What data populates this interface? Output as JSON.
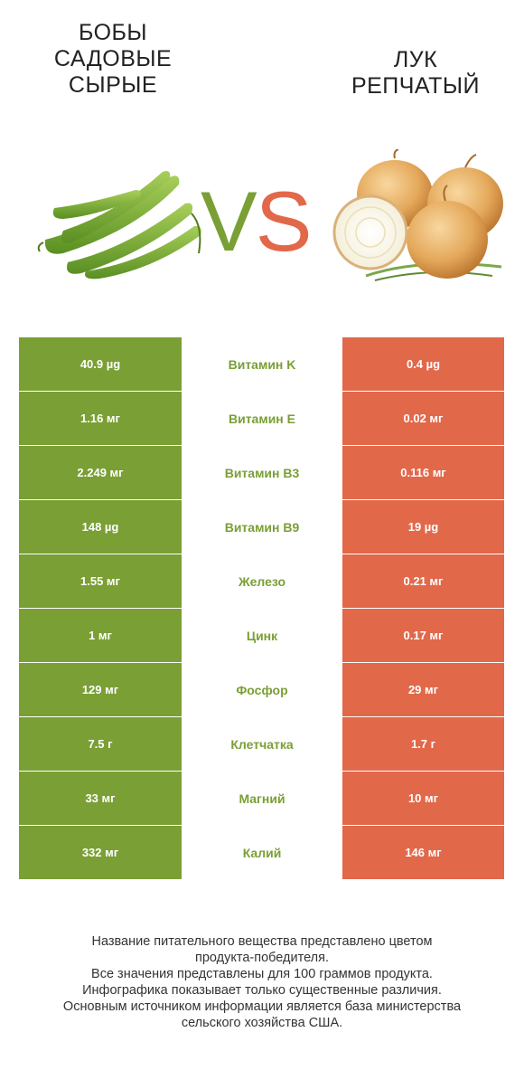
{
  "left_product": {
    "title_lines": [
      "БОБЫ",
      "САДОВЫЕ",
      "СЫРЫЕ"
    ],
    "color": "#7a9f35",
    "image": "broad-beans-illustration"
  },
  "right_product": {
    "title_lines": [
      "ЛУК",
      "РЕПЧАТЫЙ"
    ],
    "color": "#e2684a",
    "image": "onions-illustration"
  },
  "vs": {
    "v": "V",
    "s": "S"
  },
  "rows": [
    {
      "left": "40.9 µg",
      "name": "Витамин K",
      "right": "0.4 µg"
    },
    {
      "left": "1.16 мг",
      "name": "Витамин E",
      "right": "0.02 мг"
    },
    {
      "left": "2.249 мг",
      "name": "Витамин B3",
      "right": "0.116 мг"
    },
    {
      "left": "148 µg",
      "name": "Витамин B9",
      "right": "19 µg"
    },
    {
      "left": "1.55 мг",
      "name": "Железо",
      "right": "0.21 мг"
    },
    {
      "left": "1 мг",
      "name": "Цинк",
      "right": "0.17 мг"
    },
    {
      "left": "129 мг",
      "name": "Фосфор",
      "right": "29 мг"
    },
    {
      "left": "7.5 г",
      "name": "Клетчатка",
      "right": "1.7 г"
    },
    {
      "left": "33 мг",
      "name": "Магний",
      "right": "10 мг"
    },
    {
      "left": "332 мг",
      "name": "Калий",
      "right": "146 мг"
    }
  ],
  "footer_lines": [
    "Название питательного вещества представлено цветом",
    "продукта-победителя.",
    "Все значения представлены для 100 граммов продукта.",
    "Инфографика показывает только существенные различия.",
    "Основным источником информации является база министерства",
    "сельского хозяйства США."
  ]
}
